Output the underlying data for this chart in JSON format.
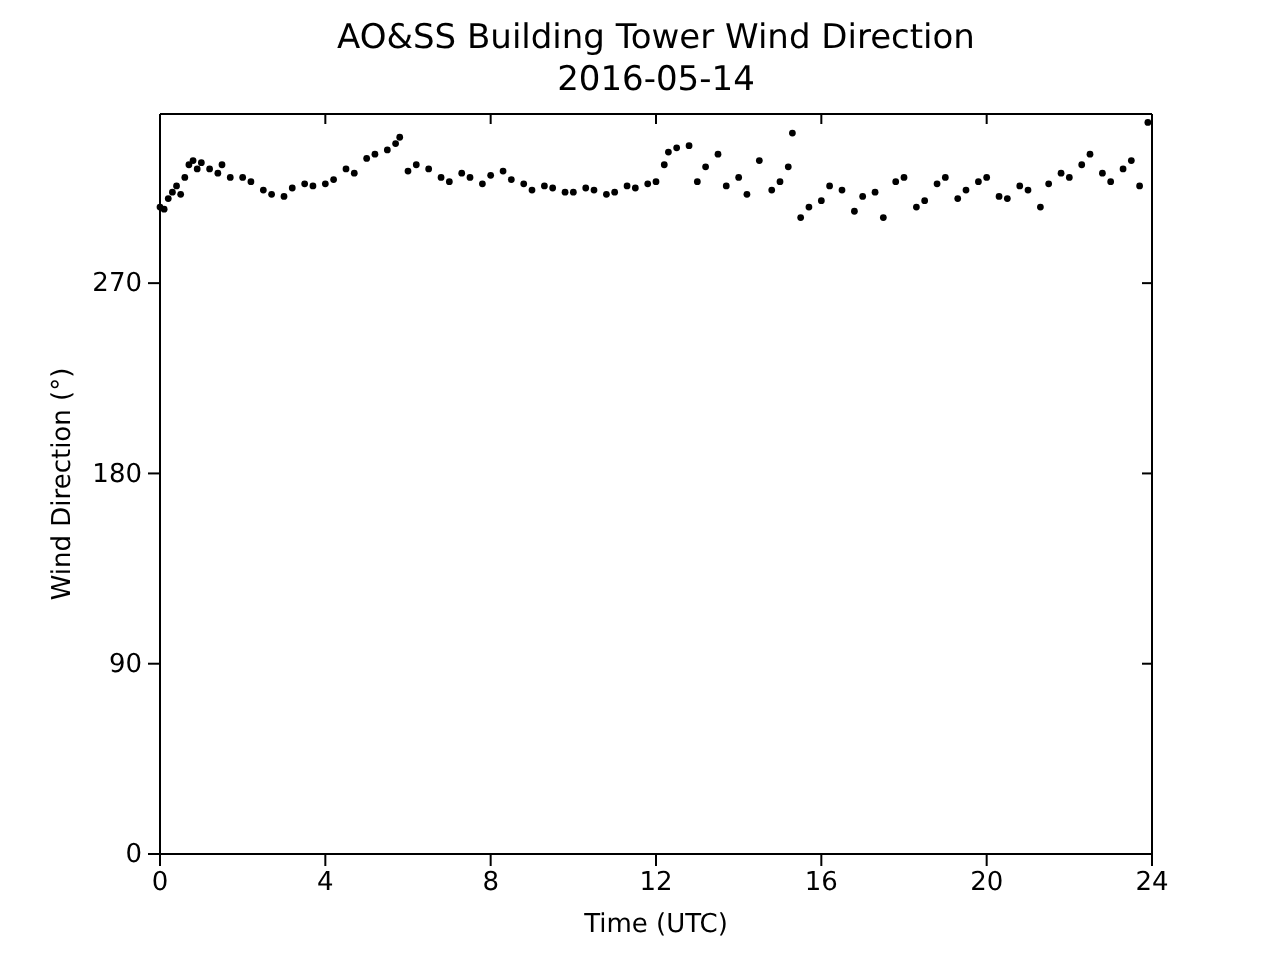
{
  "chart_data": {
    "type": "scatter",
    "title": "AO&SS Building Tower Wind Direction",
    "subtitle": "2016-05-14",
    "xlabel": "Time (UTC)",
    "ylabel": "Wind Direction (°)",
    "xlim": [
      0,
      24
    ],
    "xticks": [
      0,
      4,
      8,
      12,
      16,
      20,
      24
    ],
    "ylim": [
      0,
      350
    ],
    "yticks": [
      0,
      90,
      180,
      270
    ],
    "marker": "circle",
    "series": [
      {
        "color": "#000000",
        "x": [
          0,
          0.1,
          0.2,
          0.3,
          0.4,
          0.5,
          0.6,
          0.7,
          0.8,
          0.9,
          1,
          1.2,
          1.4,
          1.5,
          1.7,
          2,
          2.2,
          2.5,
          2.7,
          3,
          3.2,
          3.5,
          3.7,
          4,
          4.2,
          4.5,
          4.7,
          5,
          5.2,
          5.5,
          5.7,
          5.8,
          6,
          6.2,
          6.5,
          6.8,
          7,
          7.3,
          7.5,
          7.8,
          8,
          8.3,
          8.5,
          8.8,
          9,
          9.3,
          9.5,
          9.8,
          10,
          10.3,
          10.5,
          10.8,
          11,
          11.3,
          11.5,
          11.8,
          12,
          12.2,
          12.3,
          12.5,
          12.8,
          13,
          13.2,
          13.5,
          13.7,
          14,
          14.2,
          14.5,
          14.8,
          15,
          15.2,
          15.3,
          15.5,
          15.7,
          16,
          16.2,
          16.5,
          16.8,
          17,
          17.3,
          17.5,
          17.8,
          18,
          18.3,
          18.5,
          18.8,
          19,
          19.3,
          19.5,
          19.8,
          20,
          20.3,
          20.5,
          20.8,
          21,
          21.3,
          21.5,
          21.8,
          22,
          22.3,
          22.5,
          22.8,
          23,
          23.3,
          23.5,
          23.7,
          23.9
        ],
        "values": [
          306,
          305,
          310,
          313,
          316,
          312,
          320,
          326,
          328,
          324,
          327,
          324,
          322,
          326,
          320,
          320,
          318,
          314,
          312,
          311,
          315,
          317,
          316,
          317,
          319,
          324,
          322,
          329,
          331,
          333,
          336,
          339,
          323,
          326,
          324,
          320,
          318,
          322,
          320,
          317,
          321,
          323,
          319,
          317,
          314,
          316,
          315,
          313,
          313,
          315,
          314,
          312,
          313,
          316,
          315,
          317,
          318,
          326,
          332,
          334,
          335,
          318,
          325,
          331,
          316,
          320,
          312,
          328,
          314,
          318,
          325,
          341,
          301,
          306,
          309,
          316,
          314,
          304,
          311,
          313,
          301,
          318,
          320,
          306,
          309,
          317,
          320,
          310,
          314,
          318,
          320,
          311,
          310,
          316,
          314,
          306,
          317,
          322,
          320,
          326,
          331,
          322,
          318,
          324,
          328,
          316,
          346
        ]
      }
    ]
  }
}
